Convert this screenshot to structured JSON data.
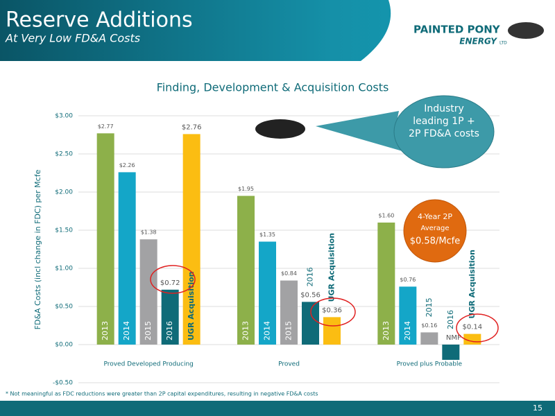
{
  "header": {
    "title": "Reserve Additions",
    "subtitle": "At Very Low FD&A Costs"
  },
  "logo": {
    "line1": "PAINTED PONY",
    "line2": "ENERGY",
    "suffix": "LTD"
  },
  "chart_data": {
    "type": "bar",
    "title": "Finding,  Development & Acquisition Costs",
    "y_label": "FD&A Costs (incl change in FDC) per Mcfe",
    "categories": [
      "Proved Developed Producing",
      "Proved",
      "Proved plus Probable"
    ],
    "series": [
      {
        "name": "2013",
        "color": "#8db04a",
        "values": [
          2.77,
          1.95,
          1.6
        ],
        "value_labels": [
          "$2.77",
          "$1.95",
          "$1.60"
        ]
      },
      {
        "name": "2014",
        "color": "#14a6c8",
        "values": [
          2.26,
          1.35,
          0.76
        ],
        "value_labels": [
          "$2.26",
          "$1.35",
          "$0.76"
        ]
      },
      {
        "name": "2015",
        "color": "#a2a2a4",
        "values": [
          1.38,
          0.84,
          0.16
        ],
        "value_labels": [
          "$1.38",
          "$0.84",
          "$0.16"
        ]
      },
      {
        "name": "2016",
        "color": "#0f6b78",
        "values": [
          0.72,
          0.56,
          -0.2
        ],
        "value_labels": [
          "$0.72",
          "$0.56",
          "NMF"
        ]
      },
      {
        "name": "UGR Acquisition",
        "color": "#fbbd12",
        "values": [
          2.76,
          0.36,
          0.14
        ],
        "value_labels": [
          "$2.76",
          "$0.36",
          "$0.14"
        ]
      }
    ],
    "ylim": [
      -0.5,
      3.0
    ],
    "yticks": [
      {
        "value": -0.5,
        "label": "-$0.50"
      },
      {
        "value": 0,
        "label": "$0.00"
      },
      {
        "value": 0.5,
        "label": "$0.50"
      },
      {
        "value": 1,
        "label": "$1.00"
      },
      {
        "value": 1.5,
        "label": "$1.50"
      },
      {
        "value": 2,
        "label": "$2.00"
      },
      {
        "value": 2.5,
        "label": "$2.50"
      },
      {
        "value": 3,
        "label": "$3.00"
      }
    ],
    "grid": true
  },
  "callout": "Industry leading 1P + 2P FD&A costs",
  "badge": {
    "line1": "4-Year 2P",
    "line2": "Average",
    "line3": "$0.58/Mcfe"
  },
  "footnote": "* Not meaningful as FDC reductions were greater than 2P capital expenditures, resulting in negative FD&A costs",
  "page_number": "15"
}
